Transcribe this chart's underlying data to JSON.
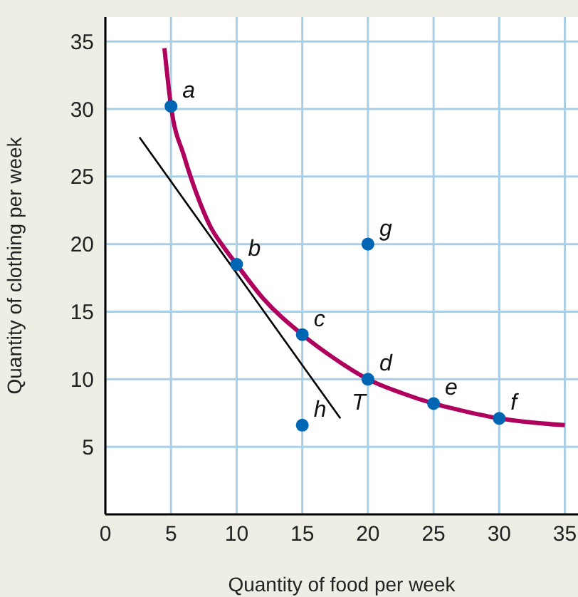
{
  "chart_data": {
    "type": "line",
    "xlabel": "Quantity of food per week",
    "ylabel": "Quantity of clothing per week",
    "xlim": [
      0,
      36
    ],
    "xticks": [
      0,
      5,
      10,
      15,
      20,
      25,
      30,
      35
    ],
    "ylim": [
      0,
      36.8
    ],
    "yticks": [
      5,
      10,
      15,
      20,
      25,
      30,
      35
    ],
    "grid": true,
    "series": [
      {
        "color": "#b0005e",
        "marker": "none",
        "x": [
          4.5,
          5,
          6,
          7,
          8,
          9,
          10,
          12,
          15,
          17.5,
          20,
          22.5,
          25,
          27.5,
          30,
          32.5,
          35
        ],
        "values": [
          34.5,
          30.2,
          26.5,
          23.6,
          21.3,
          19.8,
          18.5,
          16,
          13.3,
          11.5,
          10,
          9,
          8.2,
          7.6,
          7.1,
          6.8,
          6.6
        ]
      },
      {
        "color": "#000000",
        "marker": "none",
        "x": [
          2.6,
          17.9
        ],
        "values": [
          27.9,
          7.1
        ]
      },
      {
        "type": "scatter",
        "color": "#0066b3",
        "marker": "circle",
        "x": [
          5,
          10,
          15,
          20,
          25,
          30,
          20,
          15
        ],
        "values": [
          30.2,
          18.5,
          13.3,
          10,
          8.2,
          7.1,
          20,
          6.6
        ]
      }
    ],
    "annotations": [
      {
        "text": "a",
        "x": 5,
        "y": 30.2
      },
      {
        "text": "b",
        "x": 10,
        "y": 18.5
      },
      {
        "text": "c",
        "x": 15,
        "y": 13.3
      },
      {
        "text": "d",
        "x": 20,
        "y": 10
      },
      {
        "text": "e",
        "x": 25,
        "y": 8.2
      },
      {
        "text": "f",
        "x": 30,
        "y": 7.1
      },
      {
        "text": "g",
        "x": 20,
        "y": 20
      },
      {
        "text": "h",
        "x": 15,
        "y": 6.6
      },
      {
        "text": "T",
        "x": 17.9,
        "y": 7.1
      }
    ]
  }
}
